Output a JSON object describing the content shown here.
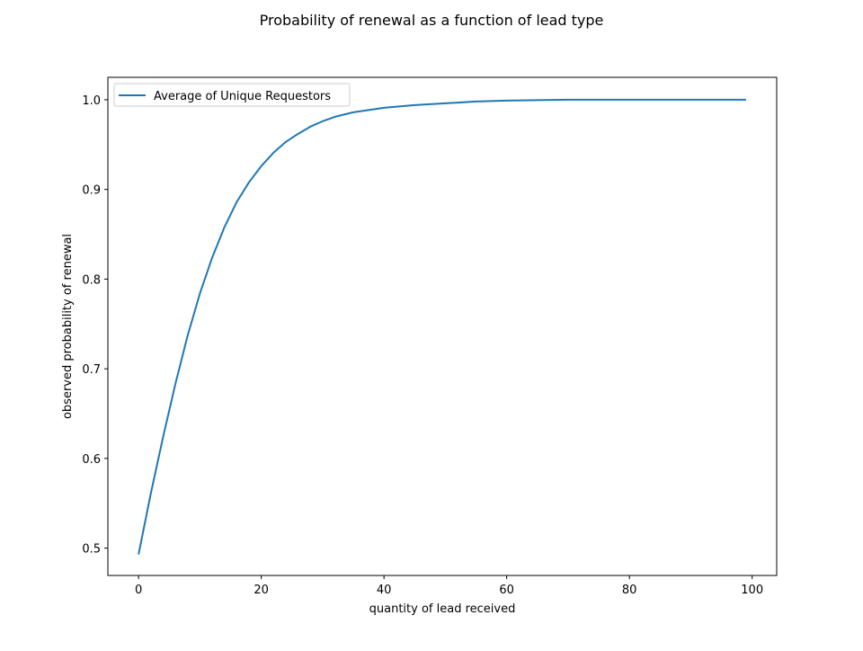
{
  "chart_data": {
    "type": "line",
    "title": "Probability of renewal as a function of lead type",
    "xlabel": "quantity of lead received",
    "ylabel": "observed probability of renewal",
    "xlim": [
      -5,
      104
    ],
    "ylim": [
      0.4695,
      1.025
    ],
    "xticks": [
      0,
      20,
      40,
      60,
      80,
      100
    ],
    "yticks": [
      0.5,
      0.6,
      0.7,
      0.8,
      0.9,
      1.0
    ],
    "xtick_labels": [
      "0",
      "20",
      "40",
      "60",
      "80",
      "100"
    ],
    "ytick_labels": [
      "0.5",
      "0.6",
      "0.7",
      "0.8",
      "0.9",
      "1.0"
    ],
    "grid": false,
    "legend_position": "upper-left",
    "series": [
      {
        "name": "Average of Unique Requestors",
        "color": "#1f77b4",
        "x": [
          0,
          2,
          4,
          6,
          8,
          10,
          12,
          14,
          16,
          18,
          20,
          22,
          24,
          26,
          28,
          30,
          32,
          35,
          40,
          45,
          50,
          55,
          60,
          70,
          80,
          90,
          99
        ],
        "y": [
          0.493,
          0.561,
          0.624,
          0.683,
          0.737,
          0.784,
          0.824,
          0.858,
          0.886,
          0.908,
          0.926,
          0.941,
          0.953,
          0.962,
          0.97,
          0.976,
          0.981,
          0.986,
          0.991,
          0.994,
          0.996,
          0.998,
          0.999,
          1.0,
          1.0,
          1.0,
          1.0
        ]
      }
    ]
  }
}
